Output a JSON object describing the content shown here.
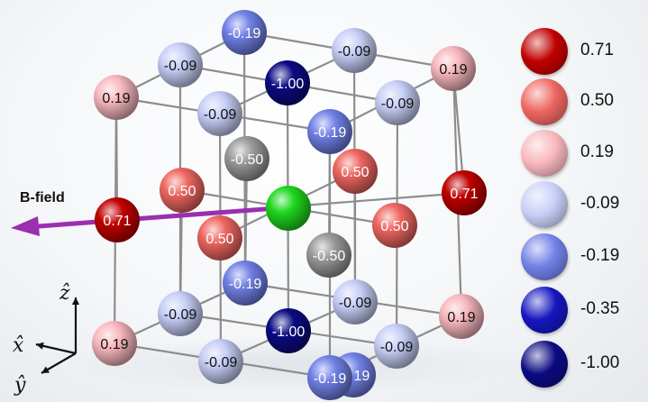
{
  "colors": {
    "0.71": "#c00000",
    "0.50": "#ee6660",
    "0.19": "#f8b8be",
    "-0.09": "#c8cff7",
    "-0.19": "#7181e6",
    "-0.35": "#1616c0",
    "-1.00": "#0b0b82",
    "center": "#1ed81e",
    "arrow": "#9b2fb0"
  },
  "legend": [
    {
      "value": "0.71",
      "color": "#c00000"
    },
    {
      "value": "0.50",
      "color": "#ee6660"
    },
    {
      "value": "0.19",
      "color": "#f8b8be"
    },
    {
      "value": "-0.09",
      "color": "#c8cff7"
    },
    {
      "value": "-0.19",
      "color": "#7181e6"
    },
    {
      "value": "-0.35",
      "color": "#1616c0"
    },
    {
      "value": "-1.00",
      "color": "#0b0b82"
    }
  ],
  "field_label": "B-field",
  "axes": {
    "z": "ẑ",
    "x": "x̂",
    "y": "ŷ"
  },
  "spheres": [
    {
      "label": "-0.19",
      "value": "-0.19"
    },
    {
      "label": "-0.09",
      "value": "-0.09"
    },
    {
      "label": "-0.09",
      "value": "-0.09"
    },
    {
      "label": "-1.00",
      "value": "-1.00"
    },
    {
      "label": "0.19",
      "value": "0.19"
    },
    {
      "label": "0.19",
      "value": "0.19"
    },
    {
      "label": "-0.09",
      "value": "-0.09"
    },
    {
      "label": "-0.09",
      "value": "-0.09"
    },
    {
      "label": "-0.19",
      "value": "-0.19"
    },
    {
      "label": "-0.50",
      "value": "-0.50"
    },
    {
      "label": "0.50",
      "value": "0.50"
    },
    {
      "label": "0.50",
      "value": "0.50"
    },
    {
      "label": "0.71",
      "value": "0.71"
    },
    {
      "label": "0.71",
      "value": "0.71"
    },
    {
      "label": "",
      "value": "center"
    },
    {
      "label": "0.50",
      "value": "0.50"
    },
    {
      "label": "0.50",
      "value": "0.50"
    },
    {
      "label": "-0.50",
      "value": "-0.50"
    },
    {
      "label": "-0.19",
      "value": "-0.19"
    },
    {
      "label": "-0.09",
      "value": "-0.09"
    },
    {
      "label": "-0.09",
      "value": "-0.09"
    },
    {
      "label": "-1.00",
      "value": "-1.00"
    },
    {
      "label": "-0.19",
      "value": "-0.19"
    },
    {
      "label": "0.19",
      "value": "0.19"
    },
    {
      "label": "0.19",
      "value": "0.19"
    },
    {
      "label": "-0.09",
      "value": "-0.09"
    },
    {
      "label": "-0.09",
      "value": "-0.09"
    },
    {
      "label": "-0.19",
      "value": "-0.19"
    }
  ]
}
